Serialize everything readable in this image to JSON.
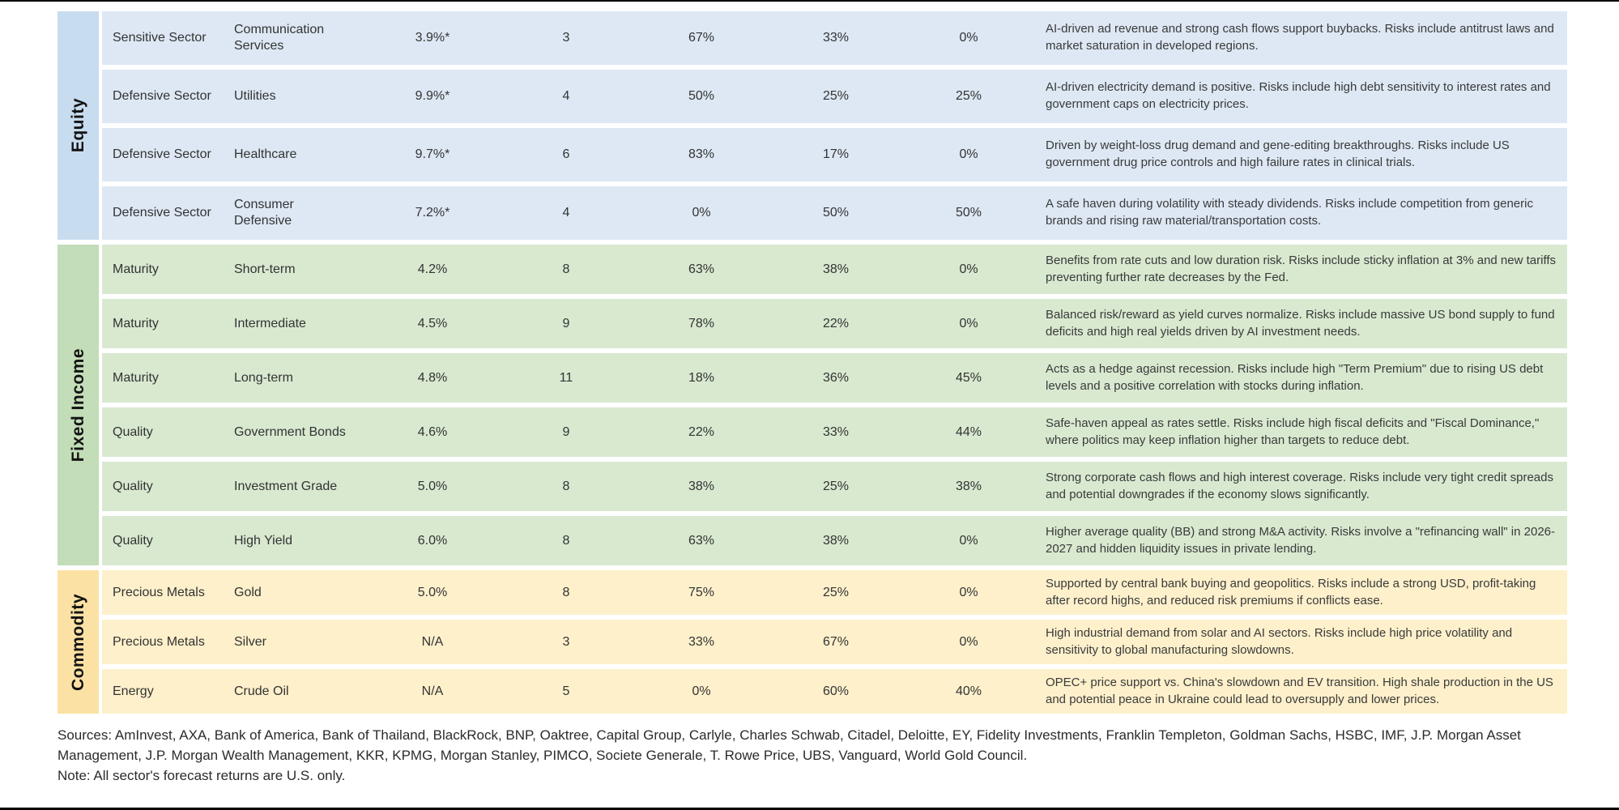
{
  "colors": {
    "page_background": "#ffffff",
    "border_line": "#000000",
    "equity_band": "#c8dcef",
    "equity_row": "#dde8f4",
    "fixed_income_band": "#c2ddb7",
    "fixed_income_row": "#d8e9d0",
    "commodity_band": "#fbe2a4",
    "commodity_row": "#fdf0cb",
    "text": "#333333"
  },
  "chart_data": {
    "type": "table",
    "sections": [
      {
        "label": "Equity",
        "band_color": "#c8dcef",
        "row_color": "#dde8f4",
        "rows": [
          {
            "category": "Sensitive Sector",
            "name": "Communication Services",
            "forecast_return": "3.9%*",
            "source_count": "3",
            "pct_1": "67%",
            "pct_2": "33%",
            "pct_3": "0%",
            "commentary": "AI-driven ad revenue and strong cash flows support buybacks. Risks include antitrust laws and market saturation in developed regions."
          },
          {
            "category": "Defensive Sector",
            "name": "Utilities",
            "forecast_return": "9.9%*",
            "source_count": "4",
            "pct_1": "50%",
            "pct_2": "25%",
            "pct_3": "25%",
            "commentary": "AI-driven electricity demand is positive. Risks include high debt sensitivity to interest rates and government caps on electricity prices."
          },
          {
            "category": "Defensive Sector",
            "name": "Healthcare",
            "forecast_return": "9.7%*",
            "source_count": "6",
            "pct_1": "83%",
            "pct_2": "17%",
            "pct_3": "0%",
            "commentary": "Driven by weight-loss drug demand and gene-editing breakthroughs. Risks include US government drug price controls and high failure rates in clinical trials."
          },
          {
            "category": "Defensive Sector",
            "name": "Consumer Defensive",
            "forecast_return": "7.2%*",
            "source_count": "4",
            "pct_1": "0%",
            "pct_2": "50%",
            "pct_3": "50%",
            "commentary": "A safe haven during volatility with steady dividends. Risks include competition from generic brands and rising raw material/transportation costs."
          }
        ]
      },
      {
        "label": "Fixed Income",
        "band_color": "#c2ddb7",
        "row_color": "#d8e9d0",
        "rows": [
          {
            "category": "Maturity",
            "name": "Short-term",
            "forecast_return": "4.2%",
            "source_count": "8",
            "pct_1": "63%",
            "pct_2": "38%",
            "pct_3": "0%",
            "commentary": "Benefits from rate cuts and low duration risk. Risks include sticky inflation at 3% and new tariffs preventing further rate decreases by the Fed."
          },
          {
            "category": "Maturity",
            "name": "Intermediate",
            "forecast_return": "4.5%",
            "source_count": "9",
            "pct_1": "78%",
            "pct_2": "22%",
            "pct_3": "0%",
            "commentary": "Balanced risk/reward as yield curves normalize. Risks include massive US bond supply to fund deficits and high real yields driven by AI investment needs."
          },
          {
            "category": "Maturity",
            "name": "Long-term",
            "forecast_return": "4.8%",
            "source_count": "11",
            "pct_1": "18%",
            "pct_2": "36%",
            "pct_3": "45%",
            "commentary": "Acts as a hedge against recession. Risks include high \"Term Premium\" due to rising US debt levels and a positive correlation with stocks during inflation."
          },
          {
            "category": "Quality",
            "name": "Government Bonds",
            "forecast_return": "4.6%",
            "source_count": "9",
            "pct_1": "22%",
            "pct_2": "33%",
            "pct_3": "44%",
            "commentary": "Safe-haven appeal as rates settle. Risks include high fiscal deficits and \"Fiscal Dominance,\" where politics may keep inflation higher than targets to reduce debt."
          },
          {
            "category": "Quality",
            "name": "Investment Grade",
            "forecast_return": "5.0%",
            "source_count": "8",
            "pct_1": "38%",
            "pct_2": "25%",
            "pct_3": "38%",
            "commentary": "Strong corporate cash flows and high interest coverage. Risks include very tight credit spreads and potential downgrades if the economy slows significantly."
          },
          {
            "category": "Quality",
            "name": "High Yield",
            "forecast_return": "6.0%",
            "source_count": "8",
            "pct_1": "63%",
            "pct_2": "38%",
            "pct_3": "0%",
            "commentary": "Higher average quality (BB) and strong M&A activity. Risks involve a \"refinancing wall\" in 2026-2027 and hidden liquidity issues in private lending."
          }
        ]
      },
      {
        "label": "Commodity",
        "band_color": "#fbe2a4",
        "row_color": "#fdf0cb",
        "rows": [
          {
            "category": "Precious Metals",
            "name": "Gold",
            "forecast_return": "5.0%",
            "source_count": "8",
            "pct_1": "75%",
            "pct_2": "25%",
            "pct_3": "0%",
            "commentary": "Supported by central bank buying and geopolitics. Risks include a strong USD, profit-taking after record highs, and reduced risk premiums if conflicts ease."
          },
          {
            "category": "Precious Metals",
            "name": "Silver",
            "forecast_return": "N/A",
            "source_count": "3",
            "pct_1": "33%",
            "pct_2": "67%",
            "pct_3": "0%",
            "commentary": "High industrial demand from solar and AI sectors. Risks include high price volatility and sensitivity to global manufacturing slowdowns."
          },
          {
            "category": "Energy",
            "name": "Crude Oil",
            "forecast_return": "N/A",
            "source_count": "5",
            "pct_1": "0%",
            "pct_2": "60%",
            "pct_3": "40%",
            "commentary": "OPEC+ price support vs. China's slowdown and EV transition. High shale production in the US and potential peace in Ukraine could lead to oversupply and lower prices."
          }
        ]
      }
    ]
  },
  "footer": {
    "sources": "Sources: AmInvest, AXA, Bank of America, Bank of Thailand, BlackRock, BNP, Oaktree, Capital Group, Carlyle, Charles Schwab, Citadel, Deloitte, EY, Fidelity Investments, Franklin Templeton, Goldman Sachs, HSBC, IMF, J.P. Morgan Asset Management, J.P. Morgan Wealth Management, KKR, KPMG, Morgan Stanley, PIMCO, Societe Generale, T. Rowe Price, UBS, Vanguard, World Gold Council.",
    "note": "Note: All sector's forecast returns are U.S. only."
  }
}
